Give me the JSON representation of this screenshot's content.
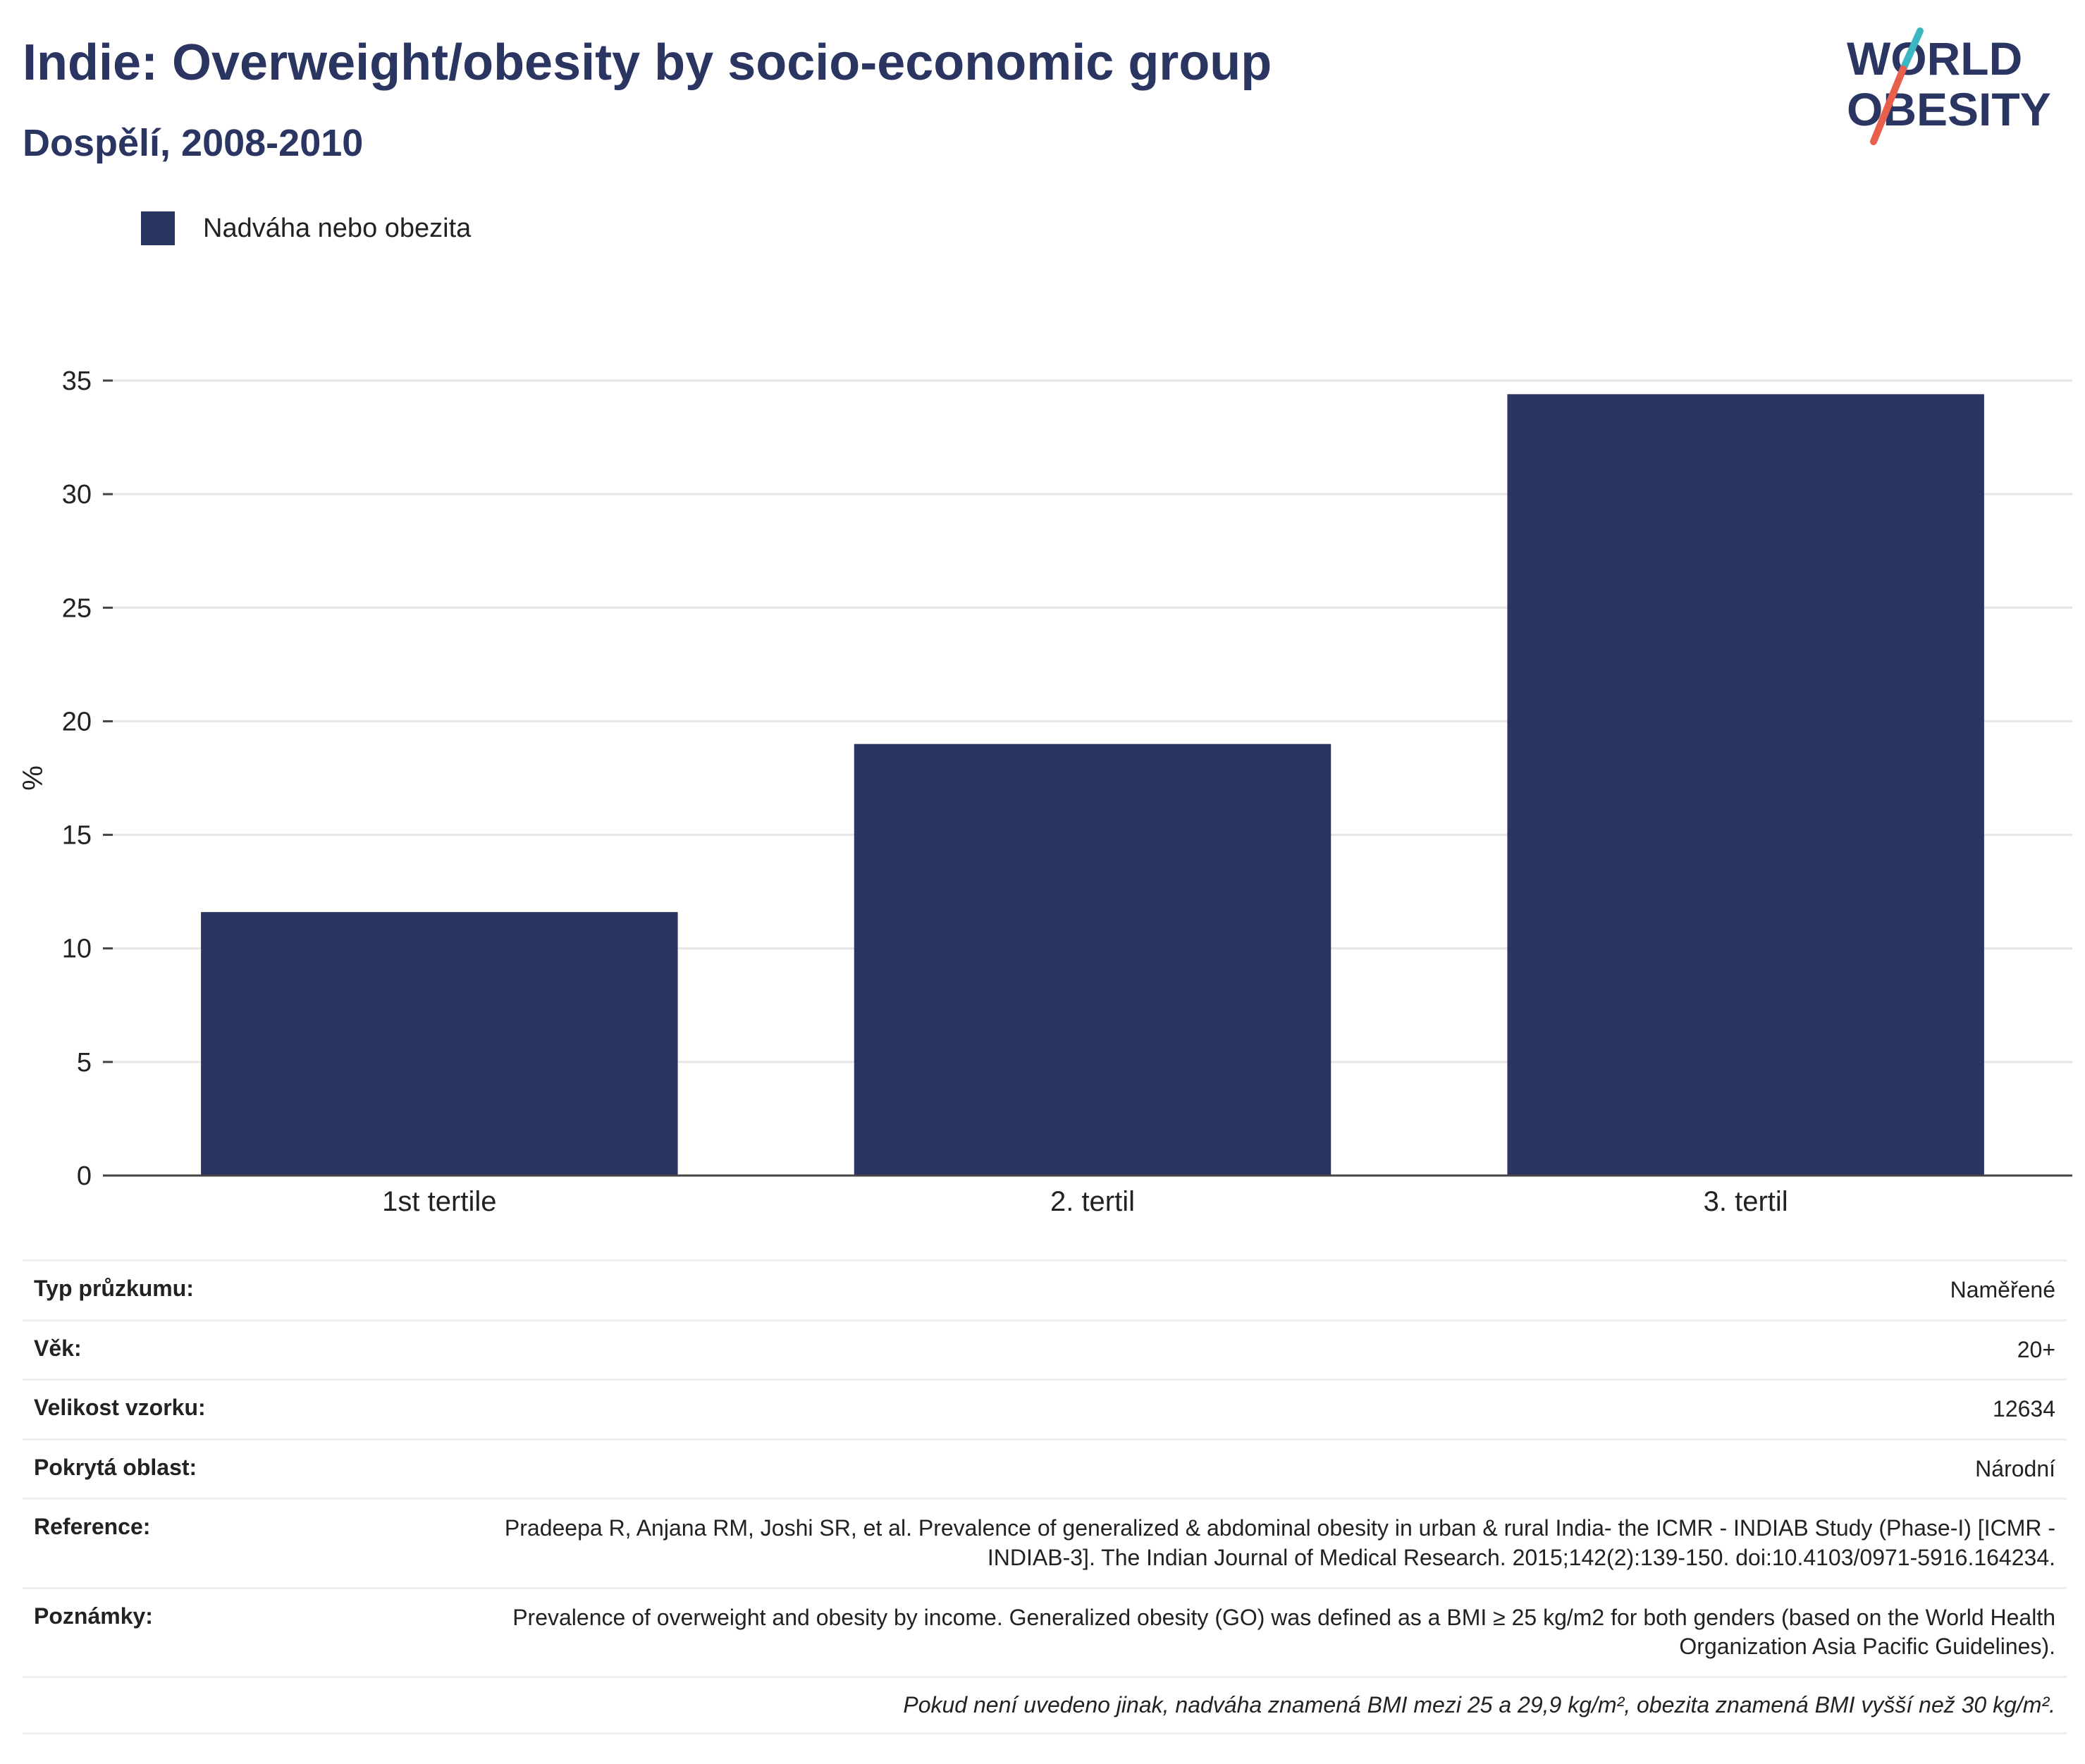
{
  "title": "Indie: Overweight/obesity by socio-economic group",
  "subtitle": "Dospělí, 2008-2010",
  "logo": {
    "line1": "WORLD",
    "line2": "OBESITY"
  },
  "colors": {
    "bar": "#2a3561",
    "text": "#2a3561",
    "grid": "#e6e6e6",
    "logo_red": "#e8604c",
    "logo_teal": "#3cb6c0"
  },
  "legend": {
    "label": "Nadváha nebo obezita"
  },
  "chart_data": {
    "type": "bar",
    "categories": [
      "1st tertile",
      "2. tertil",
      "3. tertil"
    ],
    "series": [
      {
        "name": "Nadváha nebo obezita",
        "values": [
          11.6,
          19.0,
          34.4
        ]
      }
    ],
    "ylabel": "%",
    "xlabel": "",
    "ylim": [
      0,
      35
    ],
    "yticks": [
      0,
      5,
      10,
      15,
      20,
      25,
      30,
      35
    ],
    "grid": true,
    "legend_position": "top-left"
  },
  "meta": {
    "rows": [
      {
        "key": "Typ průzkumu:",
        "value": "Naměřené"
      },
      {
        "key": "Věk:",
        "value": "20+"
      },
      {
        "key": "Velikost vzorku:",
        "value": "12634"
      },
      {
        "key": "Pokrytá oblast:",
        "value": "Národní"
      },
      {
        "key": "Reference:",
        "value": "Pradeepa R, Anjana RM, Joshi SR, et al. Prevalence of generalized & abdominal obesity in urban & rural India- the ICMR - INDIAB Study (Phase-I) [ICMR - INDIAB-3]. The Indian Journal of Medical Research. 2015;142(2):139-150. doi:10.4103/0971-5916.164234."
      },
      {
        "key": "Poznámky:",
        "value": "Prevalence of overweight and obesity by income. Generalized obesity (GO) was defined as a BMI ≥ 25 kg/m2 for both genders (based on the World Health Organization Asia Pacific Guidelines)."
      }
    ],
    "footnote": "Pokud není uvedeno jinak, nadváha znamená BMI mezi 25 a 29,9 kg/m², obezita znamená BMI vyšší než 30 kg/m²."
  }
}
